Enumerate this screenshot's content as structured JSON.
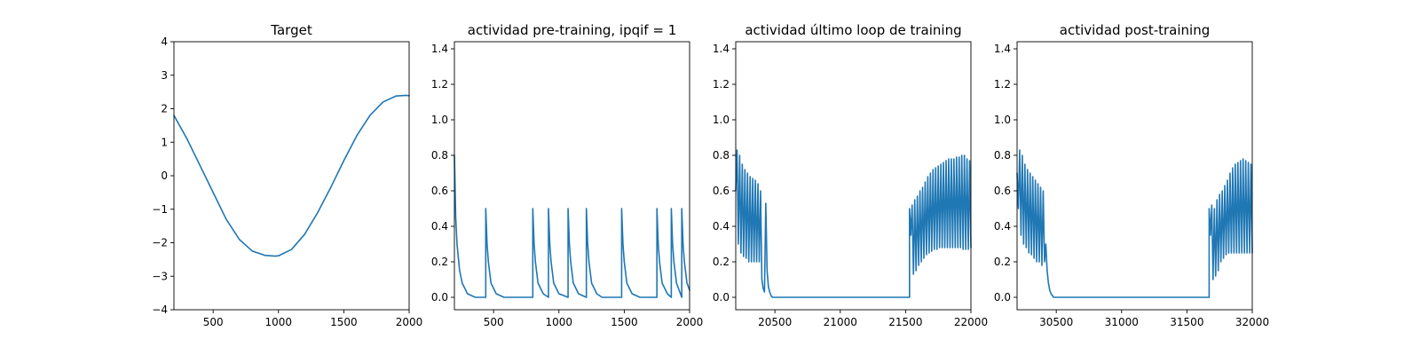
{
  "chart_data": [
    {
      "type": "line",
      "title": "Target",
      "xlabel": "",
      "ylabel": "",
      "xlim": [
        200,
        2000
      ],
      "ylim": [
        -4,
        4
      ],
      "xticks": [
        500,
        1000,
        1500,
        2000
      ],
      "yticks": [
        -4,
        -3,
        -2,
        -1,
        0,
        1,
        2,
        3,
        4
      ],
      "xtick_labels": [
        "500",
        "1000",
        "1500",
        "2000"
      ],
      "ytick_labels": [
        "−4",
        "−3",
        "−2",
        "−1",
        "0",
        "1",
        "2",
        "3",
        "4"
      ],
      "grid": false,
      "series": [
        {
          "color": "#1f77b4",
          "x": [
            200,
            300,
            400,
            500,
            600,
            700,
            800,
            900,
            975,
            1000,
            1100,
            1200,
            1300,
            1400,
            1500,
            1600,
            1700,
            1800,
            1900,
            1975,
            2000
          ],
          "y": [
            1.8,
            1.1,
            0.3,
            -0.5,
            -1.3,
            -1.9,
            -2.25,
            -2.38,
            -2.4,
            -2.39,
            -2.2,
            -1.75,
            -1.1,
            -0.35,
            0.45,
            1.2,
            1.8,
            2.2,
            2.38,
            2.4,
            2.39
          ]
        }
      ]
    },
    {
      "type": "line",
      "title": "actividad pre-training, ipqif = 1",
      "xlabel": "",
      "ylabel": "",
      "xlim": [
        200,
        2000
      ],
      "ylim": [
        -0.07,
        1.44
      ],
      "xticks": [
        500,
        1000,
        1500,
        2000
      ],
      "yticks": [
        0.0,
        0.2,
        0.4,
        0.6,
        0.8,
        1.0,
        1.2,
        1.4
      ],
      "xtick_labels": [
        "500",
        "1000",
        "1500",
        "2000"
      ],
      "ytick_labels": [
        "0.0",
        "0.2",
        "0.4",
        "0.6",
        "0.8",
        "1.0",
        "1.2",
        "1.4"
      ],
      "grid": false,
      "series": [
        {
          "color": "#1f77b4",
          "x": [
            200,
            210,
            220,
            240,
            260,
            300,
            360,
            440,
            440,
            450,
            460,
            480,
            520,
            580,
            800,
            800,
            810,
            820,
            840,
            880,
            920,
            920,
            930,
            940,
            960,
            1000,
            1070,
            1070,
            1080,
            1090,
            1110,
            1150,
            1210,
            1210,
            1220,
            1230,
            1250,
            1290,
            1330,
            1480,
            1480,
            1490,
            1500,
            1520,
            1560,
            1620,
            1750,
            1750,
            1760,
            1770,
            1790,
            1830,
            1860,
            1860,
            1870,
            1880,
            1900,
            1940,
            1940,
            1950,
            1960,
            1980,
            2000
          ],
          "y": [
            0.8,
            0.45,
            0.3,
            0.15,
            0.08,
            0.02,
            0.0,
            0.0,
            0.5,
            0.3,
            0.2,
            0.08,
            0.02,
            0.0,
            0.0,
            0.5,
            0.3,
            0.2,
            0.08,
            0.02,
            0.0,
            0.5,
            0.3,
            0.2,
            0.08,
            0.02,
            0.0,
            0.5,
            0.3,
            0.2,
            0.08,
            0.02,
            0.0,
            0.5,
            0.3,
            0.2,
            0.08,
            0.02,
            0.0,
            0.0,
            0.5,
            0.3,
            0.2,
            0.08,
            0.02,
            0.0,
            0.0,
            0.5,
            0.3,
            0.2,
            0.08,
            0.02,
            0.0,
            0.5,
            0.3,
            0.2,
            0.08,
            0.0,
            0.5,
            0.3,
            0.2,
            0.08,
            0.04
          ]
        }
      ]
    },
    {
      "type": "line",
      "title": "actividad último loop de training",
      "xlabel": "",
      "ylabel": "",
      "xlim": [
        20200,
        22000
      ],
      "ylim": [
        -0.07,
        1.44
      ],
      "xticks": [
        20500,
        21000,
        21500,
        22000
      ],
      "yticks": [
        0.0,
        0.2,
        0.4,
        0.6,
        0.8,
        1.0,
        1.2,
        1.4
      ],
      "xtick_labels": [
        "20500",
        "21000",
        "21500",
        "22000"
      ],
      "ytick_labels": [
        "0.0",
        "0.2",
        "0.4",
        "0.6",
        "0.8",
        "1.0",
        "1.2",
        "1.4"
      ],
      "grid": false,
      "series": [
        {
          "color": "#1f77b4",
          "x": [
            20200,
            20210,
            20220,
            20230,
            20240,
            20250,
            20260,
            20270,
            20280,
            20290,
            20300,
            20310,
            20320,
            20330,
            20340,
            20350,
            20360,
            20370,
            20380,
            20390,
            20400,
            20410,
            20420,
            20430,
            20440,
            20450,
            20460,
            20470,
            20480,
            20490,
            20500,
            20550,
            20600,
            21530,
            21530,
            21540,
            21550,
            21560,
            21570,
            21580,
            21590,
            21600,
            21610,
            21620,
            21630,
            21640,
            21650,
            21660,
            21670,
            21680,
            21690,
            21700,
            21710,
            21720,
            21730,
            21740,
            21750,
            21760,
            21770,
            21780,
            21790,
            21800,
            21810,
            21820,
            21830,
            21840,
            21850,
            21860,
            21870,
            21880,
            21890,
            21900,
            21910,
            21920,
            21930,
            21940,
            21950,
            21960,
            21970,
            21980,
            21990,
            22000
          ],
          "y": [
            0.6,
            0.83,
            0.3,
            0.8,
            0.25,
            0.75,
            0.23,
            0.72,
            0.22,
            0.7,
            0.2,
            0.68,
            0.2,
            0.67,
            0.2,
            0.66,
            0.2,
            0.64,
            0.2,
            0.6,
            0.1,
            0.05,
            0.03,
            0.53,
            0.15,
            0.06,
            0.03,
            0.01,
            0.0,
            0.0,
            0.0,
            0.0,
            0.0,
            0.0,
            0.5,
            0.35,
            0.52,
            0.13,
            0.55,
            0.15,
            0.57,
            0.18,
            0.6,
            0.2,
            0.62,
            0.22,
            0.65,
            0.24,
            0.68,
            0.25,
            0.7,
            0.26,
            0.72,
            0.27,
            0.73,
            0.27,
            0.74,
            0.28,
            0.75,
            0.28,
            0.76,
            0.28,
            0.77,
            0.28,
            0.78,
            0.28,
            0.78,
            0.28,
            0.78,
            0.28,
            0.79,
            0.28,
            0.79,
            0.28,
            0.8,
            0.27,
            0.8,
            0.27,
            0.78,
            0.27,
            0.77,
            0.28
          ]
        }
      ]
    },
    {
      "type": "line",
      "title": "actividad post-training",
      "xlabel": "",
      "ylabel": "",
      "xlim": [
        30200,
        32000
      ],
      "ylim": [
        -0.07,
        1.44
      ],
      "xticks": [
        30500,
        31000,
        31500,
        32000
      ],
      "yticks": [
        0.0,
        0.2,
        0.4,
        0.6,
        0.8,
        1.0,
        1.2,
        1.4
      ],
      "xtick_labels": [
        "30500",
        "31000",
        "31500",
        "32000"
      ],
      "ytick_labels": [
        "0.0",
        "0.2",
        "0.4",
        "0.6",
        "0.8",
        "1.0",
        "1.2",
        "1.4"
      ],
      "grid": false,
      "series": [
        {
          "color": "#1f77b4",
          "x": [
            30200,
            30210,
            30220,
            30230,
            30240,
            30250,
            30260,
            30270,
            30280,
            30290,
            30300,
            30310,
            30320,
            30330,
            30340,
            30350,
            30360,
            30370,
            30380,
            30390,
            30400,
            30410,
            30420,
            30430,
            30440,
            30450,
            30460,
            30480,
            30500,
            30550,
            30600,
            31670,
            31670,
            31680,
            31690,
            31700,
            31710,
            31720,
            31730,
            31740,
            31750,
            31760,
            31770,
            31780,
            31790,
            31800,
            31810,
            31820,
            31830,
            31840,
            31850,
            31860,
            31870,
            31880,
            31890,
            31900,
            31910,
            31920,
            31930,
            31940,
            31950,
            31960,
            31970,
            31980,
            31990,
            32000
          ],
          "y": [
            0.7,
            0.5,
            0.83,
            0.35,
            0.8,
            0.3,
            0.75,
            0.28,
            0.72,
            0.25,
            0.7,
            0.24,
            0.68,
            0.22,
            0.66,
            0.2,
            0.64,
            0.2,
            0.62,
            0.18,
            0.6,
            0.2,
            0.3,
            0.15,
            0.08,
            0.04,
            0.02,
            0.0,
            0.0,
            0.0,
            0.0,
            0.0,
            0.5,
            0.35,
            0.52,
            0.1,
            0.5,
            0.12,
            0.55,
            0.15,
            0.58,
            0.2,
            0.6,
            0.22,
            0.63,
            0.24,
            0.66,
            0.25,
            0.7,
            0.25,
            0.73,
            0.25,
            0.75,
            0.25,
            0.76,
            0.25,
            0.77,
            0.25,
            0.78,
            0.25,
            0.77,
            0.25,
            0.76,
            0.25,
            0.75,
            0.25
          ]
        }
      ]
    }
  ]
}
